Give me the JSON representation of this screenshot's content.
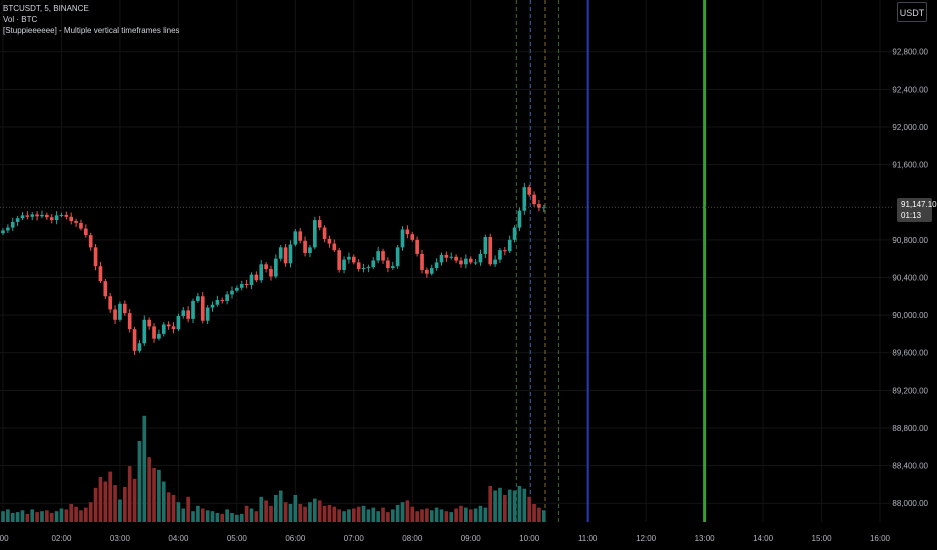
{
  "legend": {
    "symbol": "BTCUSDT, 5, BINANCE",
    "volume": "Vol · BTC",
    "indicator": "[Stuppieeeeee] - Multiple vertical timeframes lines"
  },
  "toolbar": {
    "currency_label": "USDT"
  },
  "last_price": {
    "value": "91,147.10",
    "countdown": "01:13"
  },
  "colors": {
    "up": "#26a69a",
    "down": "#ef5350",
    "vol_up": "#1f6f69",
    "vol_down": "#8a2a2a",
    "line_blue": "#2b3bb8",
    "line_green": "#35a02f",
    "dashed_green": "#3d6b2f",
    "dashed_blue": "#3b5aa8",
    "dashed_orange": "#8a6a25"
  },
  "chart_data": {
    "type": "candlestick",
    "symbol": "BTCUSDT",
    "interval": "5",
    "exchange": "BINANCE",
    "y_ticks": [
      "92,800.00",
      "92,400.00",
      "92,000.00",
      "91,600.00",
      "90,800.00",
      "90,400.00",
      "90,000.00",
      "89,600.00",
      "89,200.00",
      "88,800.00",
      "88,400.00",
      "88,000.00"
    ],
    "y_tick_values": [
      92800,
      92400,
      92000,
      91600,
      90800,
      90400,
      90000,
      89600,
      89200,
      88800,
      88400,
      88000
    ],
    "x_ticks": [
      ":00",
      "02:00",
      "03:00",
      "04:00",
      "05:00",
      "06:00",
      "07:00",
      "08:00",
      "09:00",
      "10:00",
      "11:00",
      "12:00",
      "13:00",
      "14:00",
      "15:00",
      "16:00"
    ],
    "x_tick_hours": [
      1,
      2,
      3,
      4,
      5,
      6,
      7,
      8,
      9,
      10,
      11,
      12,
      13,
      14,
      15,
      16
    ],
    "ylim": [
      87800,
      93350
    ],
    "xlim_hours": [
      1.0,
      16.6
    ],
    "last_price": 91147.1,
    "candle_minutes": 5,
    "closes": [
      90900,
      90930,
      90990,
      91030,
      91060,
      91045,
      91070,
      91050,
      91065,
      91040,
      91010,
      91060,
      91065,
      91045,
      91000,
      90980,
      90920,
      90850,
      90720,
      90520,
      90360,
      90200,
      90060,
      89950,
      90120,
      90020,
      89850,
      89620,
      89700,
      89950,
      89880,
      89750,
      89800,
      89900,
      89880,
      89850,
      89990,
      90050,
      89960,
      90150,
      90200,
      89940,
      90080,
      90110,
      90160,
      90150,
      90220,
      90260,
      90290,
      90330,
      90320,
      90430,
      90370,
      90540,
      90490,
      90410,
      90600,
      90720,
      90550,
      90750,
      90890,
      90790,
      90660,
      90720,
      91010,
      90930,
      90810,
      90760,
      90690,
      90480,
      90590,
      90620,
      90560,
      90490,
      90500,
      90510,
      90580,
      90680,
      90580,
      90500,
      90520,
      90720,
      90910,
      90860,
      90800,
      90650,
      90480,
      90440,
      90500,
      90560,
      90640,
      90610,
      90620,
      90580,
      90540,
      90600,
      90560,
      90560,
      90650,
      90830,
      90540,
      90590,
      90690,
      90680,
      90800,
      90930,
      91110,
      91360,
      91280,
      91180,
      91140,
      91147
    ],
    "volumes": [
      12,
      14,
      10,
      11,
      13,
      9,
      14,
      11,
      12,
      13,
      10,
      12,
      15,
      14,
      20,
      17,
      13,
      16,
      22,
      38,
      50,
      45,
      56,
      41,
      25,
      39,
      62,
      48,
      90,
      118,
      72,
      60,
      58,
      45,
      33,
      30,
      22,
      15,
      28,
      12,
      18,
      15,
      13,
      12,
      10,
      9,
      14,
      10,
      8,
      9,
      18,
      15,
      12,
      28,
      24,
      18,
      30,
      35,
      22,
      20,
      30,
      20,
      17,
      22,
      26,
      24,
      18,
      19,
      17,
      14,
      12,
      14,
      15,
      17,
      18,
      14,
      16,
      12,
      16,
      11,
      14,
      19,
      22,
      24,
      17,
      12,
      14,
      15,
      13,
      16,
      14,
      12,
      11,
      15,
      18,
      16,
      14,
      15,
      18,
      16,
      40,
      35,
      38,
      30,
      36,
      35,
      40,
      37,
      28,
      20,
      16,
      13
    ],
    "vertical_lines": [
      {
        "hour": 9.78,
        "color": "dashed_green",
        "style": "dashed"
      },
      {
        "hour": 10.02,
        "color": "dashed_blue",
        "style": "dashed"
      },
      {
        "hour": 10.27,
        "color": "dashed_orange",
        "style": "dashed"
      },
      {
        "hour": 10.5,
        "color": "dashed_green",
        "style": "dashed"
      },
      {
        "hour": 11.0,
        "color": "line_blue",
        "style": "solid"
      },
      {
        "hour": 13.0,
        "color": "line_green",
        "style": "solid"
      }
    ]
  }
}
